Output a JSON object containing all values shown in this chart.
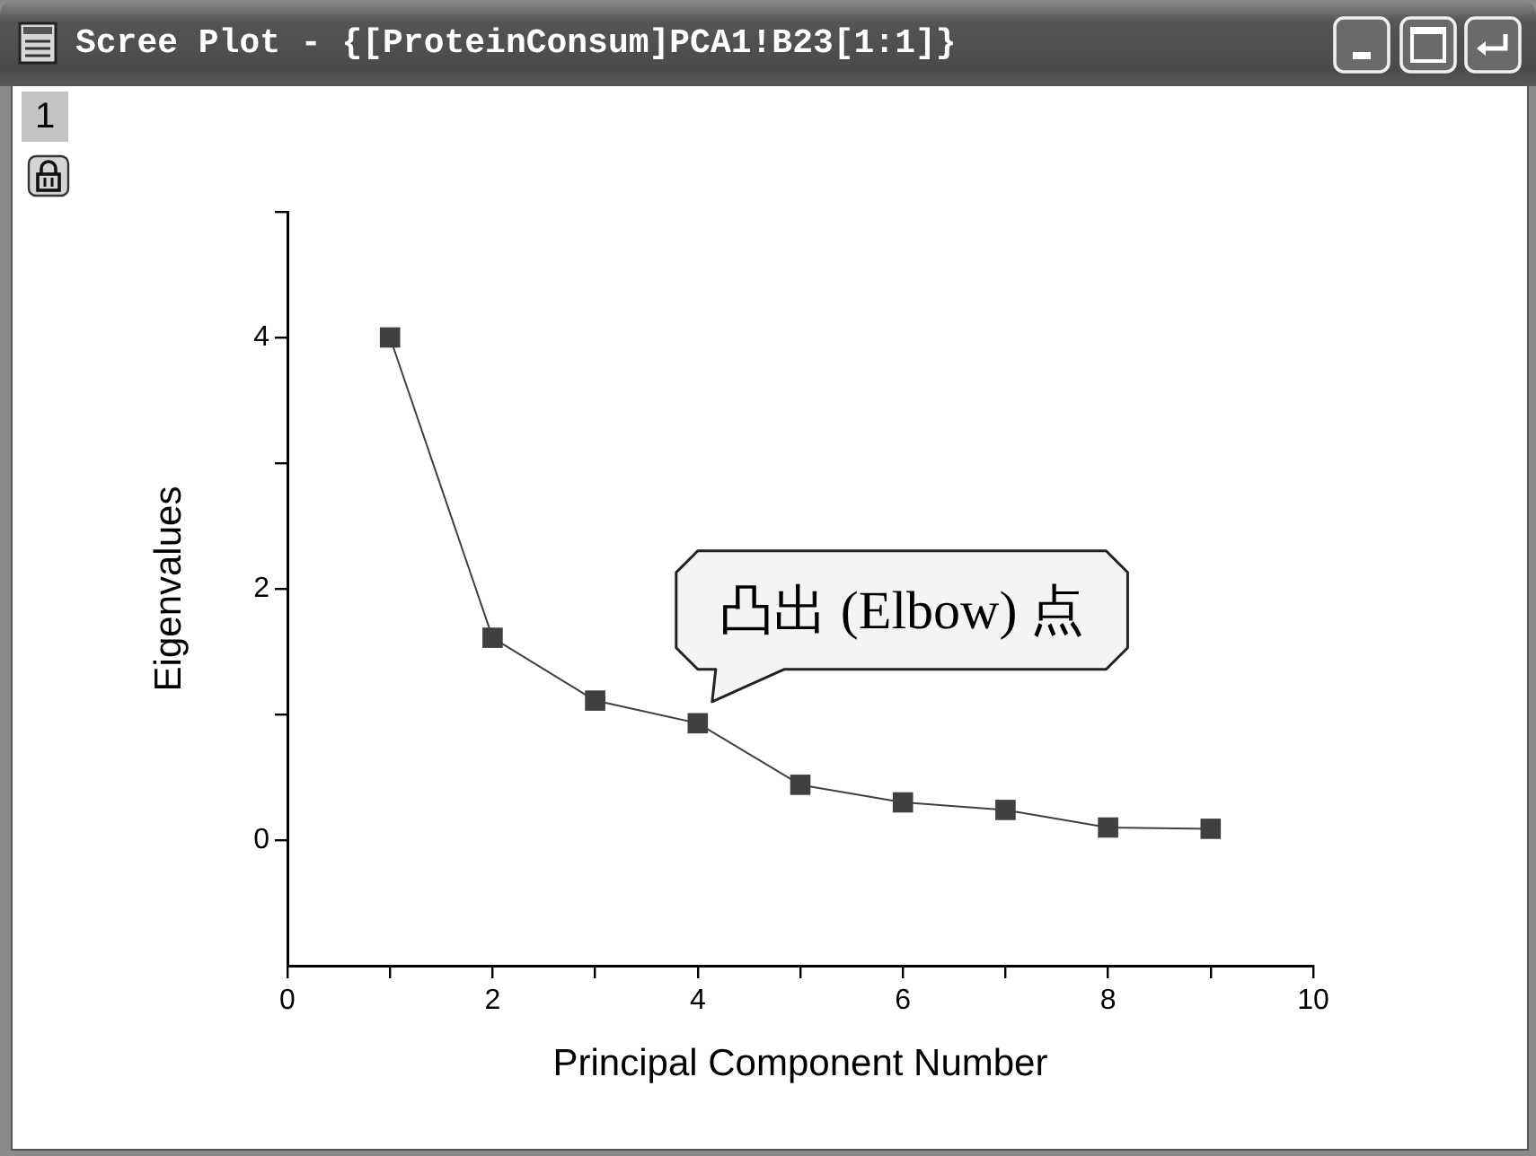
{
  "chart_data": {
    "type": "line",
    "title": "Scree Plot - {[ProteinConsum]PCA1!B23[1:1]}",
    "xlabel": "Principal Component Number",
    "ylabel": "Eigenvalues",
    "x": [
      1,
      2,
      3,
      4,
      5,
      6,
      7,
      8,
      9
    ],
    "series": [
      {
        "color": "#404040",
        "values": [
          4.0,
          1.61,
          1.11,
          0.93,
          0.44,
          0.3,
          0.24,
          0.1,
          0.09
        ]
      }
    ],
    "xlim": [
      0,
      10
    ],
    "xticks": [
      0,
      {
        "value": 1,
        "label": null
      },
      2,
      {
        "value": 3,
        "label": null
      },
      4,
      {
        "value": 5,
        "label": null
      },
      6,
      {
        "value": 7,
        "label": null
      },
      8,
      {
        "value": 9,
        "label": null
      },
      10
    ],
    "ylim": [
      -1,
      5
    ],
    "yticks": [
      0,
      {
        "value": 1,
        "label": null
      },
      2,
      {
        "value": 3,
        "label": null
      },
      4,
      {
        "value": 5,
        "label": null
      }
    ],
    "marker": "square",
    "line_style": "solid",
    "annotations": [
      {
        "text": "凸出 (Elbow) 点",
        "x": 4,
        "y": 0.93
      },
      "1"
    ]
  }
}
